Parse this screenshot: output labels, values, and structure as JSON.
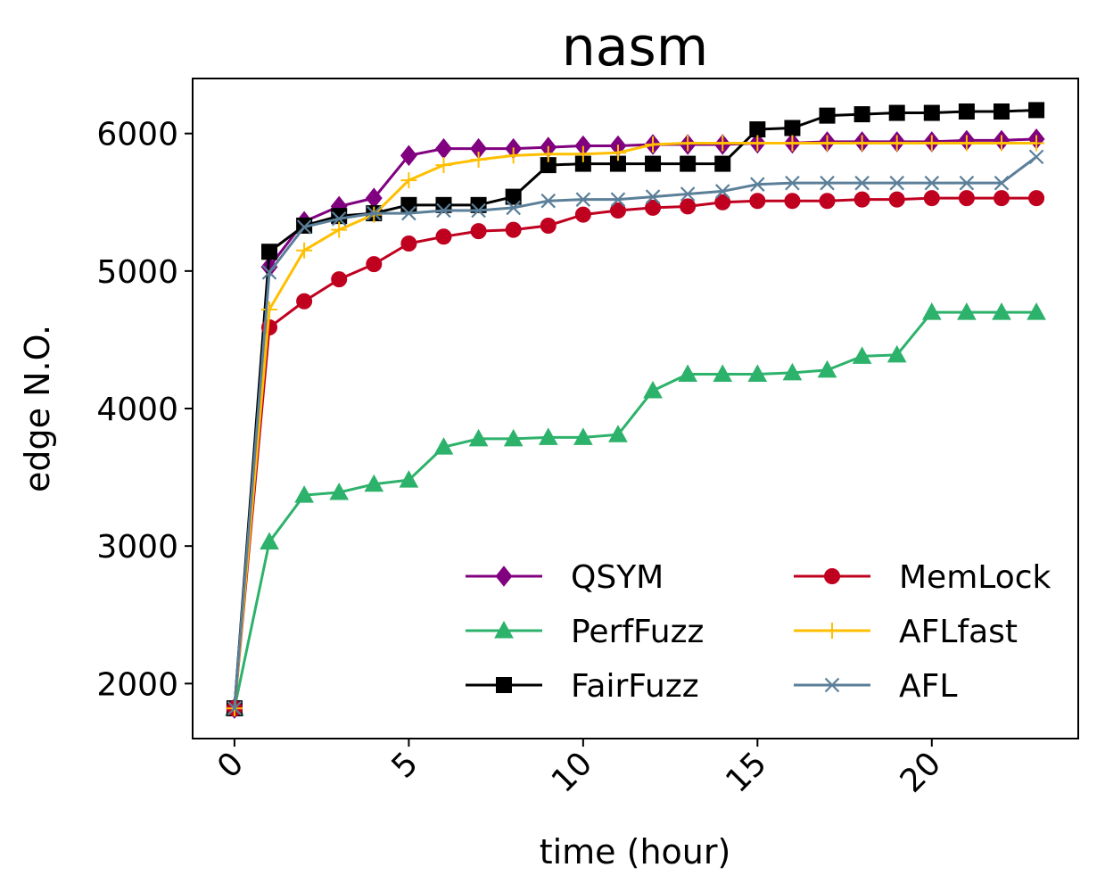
{
  "chart_data": {
    "type": "line",
    "title": "nasm",
    "xlabel": "time (hour)",
    "ylabel": "edge N.O.",
    "xlim": [
      -1.2,
      24.2
    ],
    "ylim": [
      1600,
      6400
    ],
    "xticks": [
      0,
      5,
      10,
      15,
      20
    ],
    "yticks": [
      2000,
      3000,
      4000,
      5000,
      6000
    ],
    "grid": false,
    "legend_position": "lower-right",
    "x": [
      0,
      1,
      2,
      3,
      4,
      5,
      6,
      7,
      8,
      9,
      10,
      11,
      12,
      13,
      14,
      15,
      16,
      17,
      18,
      19,
      20,
      21,
      22,
      23
    ],
    "series": [
      {
        "name": "QSYM",
        "color": "#800080",
        "marker": "diamond",
        "values": [
          1820,
          5030,
          5360,
          5470,
          5530,
          5840,
          5890,
          5890,
          5890,
          5900,
          5910,
          5910,
          5920,
          5920,
          5920,
          5930,
          5930,
          5940,
          5940,
          5940,
          5940,
          5950,
          5950,
          5960
        ]
      },
      {
        "name": "PerfFuzz",
        "color": "#2db26b",
        "marker": "triangle",
        "values": [
          1820,
          3030,
          3370,
          3390,
          3450,
          3480,
          3720,
          3780,
          3780,
          3790,
          3790,
          3810,
          4130,
          4250,
          4250,
          4250,
          4260,
          4280,
          4380,
          4390,
          4700,
          4700,
          4700,
          4700
        ]
      },
      {
        "name": "FairFuzz",
        "color": "#000000",
        "marker": "square",
        "values": [
          1820,
          5140,
          5330,
          5400,
          5420,
          5480,
          5480,
          5480,
          5540,
          5770,
          5780,
          5780,
          5780,
          5780,
          5780,
          6030,
          6040,
          6130,
          6140,
          6150,
          6150,
          6160,
          6160,
          6170
        ]
      },
      {
        "name": "MemLock",
        "color": "#c0001f",
        "marker": "circle",
        "values": [
          1820,
          4590,
          4780,
          4940,
          5050,
          5200,
          5250,
          5290,
          5300,
          5330,
          5410,
          5440,
          5460,
          5470,
          5500,
          5510,
          5510,
          5510,
          5520,
          5520,
          5530,
          5530,
          5530,
          5530
        ]
      },
      {
        "name": "AFLfast",
        "color": "#ffbf00",
        "marker": "plus",
        "values": [
          1820,
          4720,
          5150,
          5300,
          5410,
          5660,
          5770,
          5810,
          5840,
          5850,
          5850,
          5860,
          5920,
          5930,
          5930,
          5930,
          5930,
          5930,
          5930,
          5930,
          5930,
          5930,
          5930,
          5930
        ]
      },
      {
        "name": "AFL",
        "color": "#5b7f99",
        "marker": "x",
        "values": [
          1820,
          4990,
          5320,
          5380,
          5420,
          5420,
          5440,
          5440,
          5460,
          5510,
          5520,
          5520,
          5540,
          5560,
          5580,
          5630,
          5640,
          5640,
          5640,
          5640,
          5640,
          5640,
          5640,
          5830
        ]
      }
    ]
  }
}
